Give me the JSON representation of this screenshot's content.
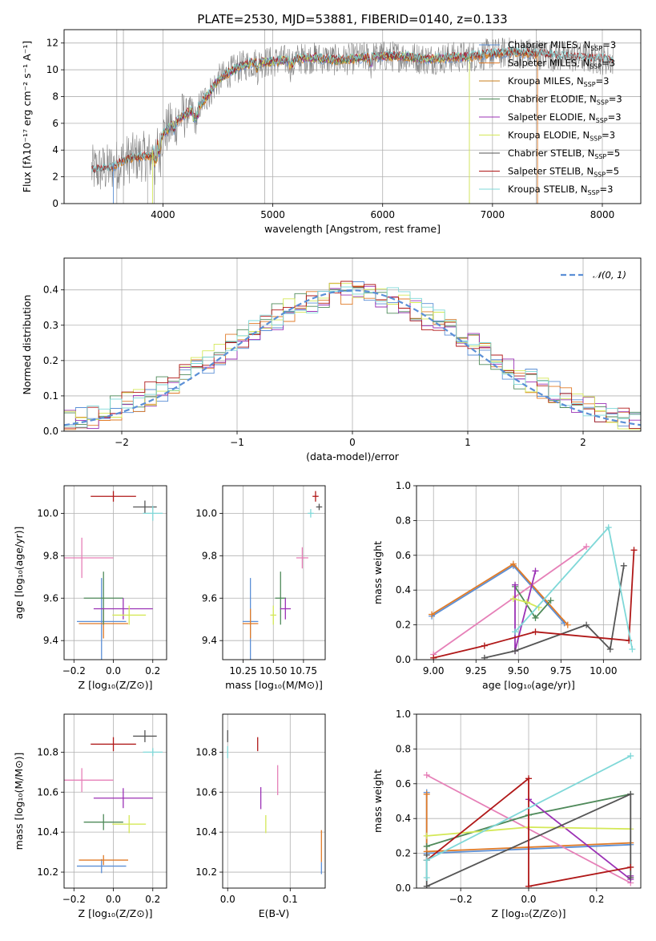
{
  "title": "PLATE=2530, MJD=53881, FIBERID=0140, z=0.133",
  "colors": {
    "Chabrier MILES": "#5b8fd6",
    "Salpeter MILES": "#e07b28",
    "Kroupa MILES": "#c87f1e",
    "Chabrier ELODIE": "#4f8a5a",
    "Salpeter ELODIE": "#9b31b5",
    "Kroupa ELODIE": "#d4e857",
    "Chabrier STELIB": "#555555",
    "Salpeter STELIB": "#b01818",
    "Kroupa STELIB": "#7fd8d8",
    "pink": "#e680b8",
    "grid": "#b0b0b0",
    "spectrum": "#808080"
  },
  "chart_data": [
    {
      "id": "spectrum",
      "type": "line",
      "title": "PLATE=2530, MJD=53881, FIBERID=0140, z=0.133",
      "xlabel": "wavelength [Angstrom, rest frame]",
      "ylabel": "Flux [fλ10⁻¹⁷ erg cm⁻² s⁻¹ A⁻¹]",
      "xlim": [
        3100,
        8350
      ],
      "ylim": [
        0,
        13
      ],
      "xticks": [
        4000,
        5000,
        6000,
        7000,
        8000
      ],
      "yticks": [
        0,
        2,
        4,
        6,
        8,
        10,
        12
      ],
      "legend_position": "right",
      "legend": [
        "Chabrier MILES, N_SSP=3",
        "Salpeter MILES, N_SSP=3",
        "Kroupa MILES, N_SSP=3",
        "Chabrier ELODIE, N_SSP=3",
        "Salpeter ELODIE, N_SSP=3",
        "Kroupa ELODIE, N_SSP=3",
        "Chabrier STELIB, N_SSP=5",
        "Salpeter STELIB, N_SSP=5",
        "Kroupa STELIB, N_SSP=3"
      ],
      "continuum": [
        [
          3350,
          2.5
        ],
        [
          3500,
          2.6
        ],
        [
          3600,
          3.0
        ],
        [
          3700,
          3.4
        ],
        [
          3800,
          3.5
        ],
        [
          3900,
          3.6
        ],
        [
          3950,
          4.5
        ],
        [
          4000,
          5.2
        ],
        [
          4100,
          6.0
        ],
        [
          4200,
          6.7
        ],
        [
          4300,
          7.0
        ],
        [
          4400,
          8.0
        ],
        [
          4500,
          9.2
        ],
        [
          4600,
          9.8
        ],
        [
          4700,
          10.2
        ],
        [
          4800,
          10.5
        ],
        [
          5000,
          10.6
        ],
        [
          5200,
          10.8
        ],
        [
          5400,
          10.9
        ],
        [
          5600,
          10.7
        ],
        [
          5800,
          10.9
        ],
        [
          6000,
          11.0
        ],
        [
          6200,
          11.0
        ],
        [
          6400,
          10.8
        ],
        [
          6600,
          10.9
        ],
        [
          6800,
          11.0
        ],
        [
          7000,
          11.2
        ],
        [
          7200,
          11.3
        ],
        [
          7400,
          11.2
        ],
        [
          7600,
          11.0
        ],
        [
          7800,
          10.9
        ],
        [
          8000,
          10.8
        ],
        [
          8100,
          10.7
        ]
      ]
    },
    {
      "id": "residuals",
      "type": "histogram",
      "xlabel": "(data-model)/error",
      "ylabel": "Normed distribution",
      "xlim": [
        -2.5,
        2.5
      ],
      "ylim": [
        0,
        0.49
      ],
      "xticks": [
        -2,
        -1,
        0,
        1,
        2
      ],
      "yticks": [
        0.0,
        0.1,
        0.2,
        0.3,
        0.4
      ],
      "legend": [
        "𝒩(0, 1)"
      ],
      "legend_position": "top-right"
    },
    {
      "id": "age-vs-Z",
      "type": "errorbar",
      "xlabel": "Z [log₁₀(Z/Z⊙)]",
      "ylabel": "age  [log₁₀(age/yr)]",
      "xlim": [
        -0.25,
        0.27
      ],
      "ylim": [
        9.31,
        10.13
      ],
      "xticks": [
        -0.2,
        0.0,
        0.2
      ],
      "yticks": [
        9.4,
        9.6,
        9.8,
        10.0
      ],
      "points": [
        {
          "model": "Chabrier MILES",
          "x": -0.06,
          "xerr": 0.25,
          "y": 9.49,
          "yerr": 0.41
        },
        {
          "model": "Salpeter MILES",
          "x": -0.05,
          "xerr": 0.25,
          "y": 9.48,
          "yerr": 0.14
        },
        {
          "model": "Chabrier ELODIE",
          "x": -0.05,
          "xerr": 0.2,
          "y": 9.6,
          "yerr": 0.25
        },
        {
          "model": "Salpeter ELODIE",
          "x": 0.05,
          "xerr": 0.3,
          "y": 9.55,
          "yerr": 0.1
        },
        {
          "model": "Kroupa ELODIE",
          "x": 0.08,
          "xerr": 0.17,
          "y": 9.52,
          "yerr": 0.09
        },
        {
          "model": "pink",
          "x": -0.16,
          "xerr": 0.32,
          "y": 9.79,
          "yerr": 0.19
        },
        {
          "model": "Chabrier STELIB",
          "x": 0.16,
          "xerr": 0.12,
          "y": 10.03,
          "yerr": 0.06
        },
        {
          "model": "Salpeter STELIB",
          "x": 0.0,
          "xerr": 0.23,
          "y": 10.08,
          "yerr": 0.05
        },
        {
          "model": "Kroupa STELIB",
          "x": 0.2,
          "xerr": 0.1,
          "y": 10.0,
          "yerr": 0.07
        }
      ]
    },
    {
      "id": "age-vs-mass",
      "type": "errorbar",
      "xlabel": "mass [log₁₀(M/M⊙)]",
      "ylabel": "",
      "xlim": [
        10.08,
        10.93
      ],
      "ylim": [
        9.31,
        10.13
      ],
      "xticks": [
        10.25,
        10.5,
        10.75
      ],
      "yticks": [
        9.4,
        9.6,
        9.8,
        10.0
      ],
      "points": [
        {
          "model": "Chabrier MILES",
          "x": 10.31,
          "xerr": 0.13,
          "y": 9.49,
          "yerr": 0.41
        },
        {
          "model": "Salpeter MILES",
          "x": 10.31,
          "xerr": 0.13,
          "y": 9.48,
          "yerr": 0.14
        },
        {
          "model": "Chabrier ELODIE",
          "x": 10.56,
          "xerr": 0.09,
          "y": 9.6,
          "yerr": 0.25
        },
        {
          "model": "Salpeter ELODIE",
          "x": 10.6,
          "xerr": 0.09,
          "y": 9.55,
          "yerr": 0.1
        },
        {
          "model": "Kroupa ELODIE",
          "x": 10.5,
          "xerr": 0.05,
          "y": 9.52,
          "yerr": 0.09
        },
        {
          "model": "pink",
          "x": 10.74,
          "xerr": 0.1,
          "y": 9.79,
          "yerr": 0.1
        },
        {
          "model": "Chabrier STELIB",
          "x": 10.88,
          "xerr": 0.05,
          "y": 10.03,
          "yerr": 0.03
        },
        {
          "model": "Salpeter STELIB",
          "x": 10.85,
          "xerr": 0.05,
          "y": 10.08,
          "yerr": 0.05
        },
        {
          "model": "Kroupa STELIB",
          "x": 10.81,
          "xerr": 0.05,
          "y": 10.0,
          "yerr": 0.04
        }
      ]
    },
    {
      "id": "mass-weight-vs-age",
      "type": "line",
      "xlabel": "age  [log₁₀(age/yr)]",
      "ylabel": "mass weight",
      "xlim": [
        8.9,
        10.22
      ],
      "ylim": [
        0,
        1.0
      ],
      "xticks": [
        9.0,
        9.25,
        9.5,
        9.75,
        10.0
      ],
      "yticks": [
        0.0,
        0.2,
        0.4,
        0.6,
        0.8,
        1.0
      ],
      "series": [
        {
          "model": "Chabrier MILES",
          "x": [
            8.99,
            9.47,
            9.77
          ],
          "y": [
            0.25,
            0.54,
            0.21
          ]
        },
        {
          "model": "Salpeter MILES",
          "x": [
            8.99,
            9.47,
            9.79
          ],
          "y": [
            0.26,
            0.55,
            0.2
          ]
        },
        {
          "model": "pink",
          "x": [
            9.0,
            9.9
          ],
          "y": [
            0.03,
            0.65
          ]
        },
        {
          "model": "Chabrier ELODIE",
          "x": [
            9.48,
            9.6,
            9.69
          ],
          "y": [
            0.42,
            0.24,
            0.34
          ]
        },
        {
          "model": "Salpeter ELODIE",
          "x": [
            9.48,
            9.48,
            9.6
          ],
          "y": [
            0.43,
            0.05,
            0.51
          ]
        },
        {
          "model": "Kroupa ELODIE",
          "x": [
            9.47,
            9.55,
            9.62
          ],
          "y": [
            0.35,
            0.33,
            0.3
          ]
        },
        {
          "model": "Chabrier STELIB",
          "x": [
            9.3,
            9.48,
            9.9,
            10.04,
            10.12
          ],
          "y": [
            0.01,
            0.05,
            0.2,
            0.06,
            0.54
          ]
        },
        {
          "model": "Salpeter STELIB",
          "x": [
            9.0,
            9.3,
            9.6,
            10.15,
            10.18
          ],
          "y": [
            0.01,
            0.08,
            0.16,
            0.11,
            0.63
          ]
        },
        {
          "model": "Kroupa STELIB",
          "x": [
            9.48,
            10.03,
            10.17
          ],
          "y": [
            0.16,
            0.76,
            0.06
          ]
        }
      ]
    },
    {
      "id": "mass-vs-Z",
      "type": "errorbar",
      "xlabel": "Z [log₁₀(Z/Z⊙)]",
      "ylabel": "mass [log₁₀(M/M⊙)]",
      "xlim": [
        -0.25,
        0.27
      ],
      "ylim": [
        10.12,
        10.99
      ],
      "xticks": [
        -0.2,
        0.0,
        0.2
      ],
      "yticks": [
        10.2,
        10.4,
        10.6,
        10.8
      ],
      "points": [
        {
          "model": "Chabrier MILES",
          "x": -0.06,
          "xerr": 0.25,
          "y": 10.23,
          "yerr": 0.07
        },
        {
          "model": "Salpeter MILES",
          "x": -0.05,
          "xerr": 0.25,
          "y": 10.26,
          "yerr": 0.05
        },
        {
          "model": "Chabrier ELODIE",
          "x": -0.05,
          "xerr": 0.2,
          "y": 10.45,
          "yerr": 0.08
        },
        {
          "model": "Salpeter ELODIE",
          "x": 0.05,
          "xerr": 0.3,
          "y": 10.57,
          "yerr": 0.1
        },
        {
          "model": "Kroupa ELODIE",
          "x": 0.08,
          "xerr": 0.17,
          "y": 10.44,
          "yerr": 0.09
        },
        {
          "model": "pink",
          "x": -0.16,
          "xerr": 0.32,
          "y": 10.66,
          "yerr": 0.12
        },
        {
          "model": "Chabrier STELIB",
          "x": 0.16,
          "xerr": 0.12,
          "y": 10.88,
          "yerr": 0.06
        },
        {
          "model": "Salpeter STELIB",
          "x": 0.0,
          "xerr": 0.23,
          "y": 10.84,
          "yerr": 0.07
        },
        {
          "model": "Kroupa STELIB",
          "x": 0.2,
          "xerr": 0.1,
          "y": 10.8,
          "yerr": 0.04
        }
      ]
    },
    {
      "id": "mass-vs-ebv",
      "type": "errorbar",
      "xlabel": "E(B-V)",
      "ylabel": "",
      "xlim": [
        -0.008,
        0.156
      ],
      "ylim": [
        10.12,
        10.99
      ],
      "xticks": [
        0.0,
        0.1
      ],
      "yticks": [
        10.2,
        10.4,
        10.6,
        10.8
      ],
      "points": [
        {
          "model": "Chabrier STELIB",
          "x": 0.0,
          "y": 10.88,
          "yerr": 0.06
        },
        {
          "model": "Kroupa STELIB",
          "x": 0.0,
          "y": 10.8,
          "yerr": 0.06
        },
        {
          "model": "Salpeter STELIB",
          "x": 0.048,
          "y": 10.84,
          "yerr": 0.07
        },
        {
          "model": "Salpeter ELODIE",
          "x": 0.053,
          "y": 10.57,
          "yerr": 0.11
        },
        {
          "model": "Kroupa ELODIE",
          "x": 0.061,
          "y": 10.44,
          "yerr": 0.09
        },
        {
          "model": "pink",
          "x": 0.08,
          "y": 10.66,
          "yerr": 0.15
        },
        {
          "model": "Salpeter MILES",
          "x": 0.15,
          "y": 10.33,
          "yerr": 0.16
        },
        {
          "model": "Chabrier MILES",
          "x": 0.15,
          "y": 10.22,
          "yerr": 0.06
        }
      ]
    },
    {
      "id": "mass-weight-vs-Z",
      "type": "line",
      "xlabel": "Z [log₁₀(Z/Z⊙)]",
      "ylabel": "mass weight",
      "xlim": [
        -0.33,
        0.33
      ],
      "ylim": [
        0,
        1.0
      ],
      "xticks": [
        -0.2,
        0.0,
        0.2
      ],
      "yticks": [
        0.0,
        0.2,
        0.4,
        0.6,
        0.8,
        1.0
      ],
      "series": [
        {
          "model": "Chabrier MILES",
          "x": [
            -0.3,
            -0.3,
            0.3
          ],
          "y": [
            0.55,
            0.2,
            0.25
          ]
        },
        {
          "model": "Salpeter MILES",
          "x": [
            -0.3,
            -0.3,
            0.3
          ],
          "y": [
            0.54,
            0.21,
            0.26
          ]
        },
        {
          "model": "pink",
          "x": [
            -0.3,
            0.3
          ],
          "y": [
            0.65,
            0.03
          ]
        },
        {
          "model": "Chabrier ELODIE",
          "x": [
            -0.3,
            0.0,
            0.3
          ],
          "y": [
            0.24,
            0.42,
            0.54
          ]
        },
        {
          "model": "Salpeter ELODIE",
          "x": [
            0.0,
            0.3,
            0.3
          ],
          "y": [
            0.51,
            0.05,
            0.07
          ]
        },
        {
          "model": "Kroupa ELODIE",
          "x": [
            -0.3,
            0.0,
            0.3
          ],
          "y": [
            0.3,
            0.35,
            0.34
          ]
        },
        {
          "model": "Chabrier STELIB",
          "x": [
            -0.3,
            -0.3,
            0.3,
            0.3
          ],
          "y": [
            0.19,
            0.01,
            0.54,
            0.06
          ]
        },
        {
          "model": "Salpeter STELIB",
          "x": [
            -0.3,
            0.0,
            0.0,
            0.3
          ],
          "y": [
            0.16,
            0.63,
            0.01,
            0.12
          ]
        },
        {
          "model": "Kroupa STELIB",
          "x": [
            -0.3,
            -0.3,
            0.3
          ],
          "y": [
            0.06,
            0.16,
            0.76
          ]
        }
      ]
    }
  ]
}
